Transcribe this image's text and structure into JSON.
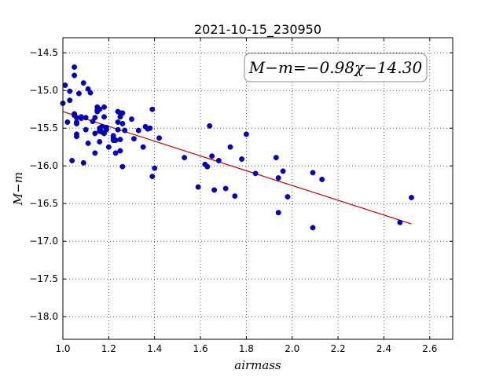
{
  "chart_data": {
    "type": "scatter",
    "title": "2021-10-15_230950",
    "xlabel": "airmass",
    "ylabel": "M−m",
    "xlim": [
      1.0,
      2.7
    ],
    "ylim": [
      -18.3,
      -14.3
    ],
    "xticks": [
      1.0,
      1.2,
      1.4,
      1.6,
      1.8,
      2.0,
      2.2,
      2.4,
      2.6
    ],
    "xtick_labels": [
      "1.0",
      "1.2",
      "1.4",
      "1.6",
      "1.8",
      "2.0",
      "2.2",
      "2.4",
      "2.6"
    ],
    "yticks": [
      -14.5,
      -15.0,
      -15.5,
      -16.0,
      -16.5,
      -17.0,
      -17.5,
      -18.0
    ],
    "ytick_labels": [
      "−14.5",
      "−15.0",
      "−15.5",
      "−16.0",
      "−16.5",
      "−17.0",
      "−17.5",
      "−18.0"
    ],
    "grid": true,
    "annotation": "M−m=−0.98χ−14.30",
    "point_color": "#0000cc",
    "fit_color": "#cc0000",
    "fit_line": {
      "slope": -0.98,
      "intercept": -14.3,
      "x_range": [
        1.0,
        2.52
      ]
    },
    "points": [
      [
        1.0,
        -15.17
      ],
      [
        1.01,
        -14.93
      ],
      [
        1.02,
        -15.42
      ],
      [
        1.03,
        -15.01
      ],
      [
        1.03,
        -15.13
      ],
      [
        1.04,
        -15.93
      ],
      [
        1.05,
        -14.8
      ],
      [
        1.05,
        -14.69
      ],
      [
        1.05,
        -15.31
      ],
      [
        1.05,
        -15.33
      ],
      [
        1.06,
        -15.58
      ],
      [
        1.06,
        -15.61
      ],
      [
        1.06,
        -15.44
      ],
      [
        1.06,
        -15.42
      ],
      [
        1.06,
        -15.36
      ],
      [
        1.07,
        -15.04
      ],
      [
        1.08,
        -15.35
      ],
      [
        1.08,
        -15.37
      ],
      [
        1.09,
        -14.9
      ],
      [
        1.09,
        -15.96
      ],
      [
        1.1,
        -15.52
      ],
      [
        1.1,
        -15.36
      ],
      [
        1.11,
        -15.7
      ],
      [
        1.11,
        -14.98
      ],
      [
        1.12,
        -15.03
      ],
      [
        1.13,
        -15.41
      ],
      [
        1.14,
        -15.83
      ],
      [
        1.14,
        -15.36
      ],
      [
        1.14,
        -15.57
      ],
      [
        1.15,
        -15.22
      ],
      [
        1.15,
        -15.26
      ],
      [
        1.15,
        -15.28
      ],
      [
        1.16,
        -15.25
      ],
      [
        1.16,
        -15.5
      ],
      [
        1.16,
        -15.54
      ],
      [
        1.16,
        -15.68
      ],
      [
        1.17,
        -15.55
      ],
      [
        1.17,
        -15.48
      ],
      [
        1.18,
        -15.22
      ],
      [
        1.18,
        -15.35
      ],
      [
        1.18,
        -15.57
      ],
      [
        1.19,
        -15.52
      ],
      [
        1.19,
        -15.49
      ],
      [
        1.2,
        -15.75
      ],
      [
        1.22,
        -15.63
      ],
      [
        1.22,
        -15.6
      ],
      [
        1.22,
        -15.66
      ],
      [
        1.23,
        -15.83
      ],
      [
        1.23,
        -15.66
      ],
      [
        1.24,
        -15.42
      ],
      [
        1.24,
        -15.28
      ],
      [
        1.24,
        -15.52
      ],
      [
        1.25,
        -15.3
      ],
      [
        1.25,
        -15.35
      ],
      [
        1.25,
        -15.8
      ],
      [
        1.25,
        -15.65
      ],
      [
        1.26,
        -16.01
      ],
      [
        1.26,
        -15.44
      ],
      [
        1.26,
        -15.3
      ],
      [
        1.27,
        -15.53
      ],
      [
        1.3,
        -15.38
      ],
      [
        1.31,
        -15.64
      ],
      [
        1.33,
        -15.53
      ],
      [
        1.35,
        -15.75
      ],
      [
        1.36,
        -15.48
      ],
      [
        1.37,
        -15.51
      ],
      [
        1.38,
        -15.5
      ],
      [
        1.39,
        -15.25
      ],
      [
        1.39,
        -16.14
      ],
      [
        1.4,
        -16.03
      ],
      [
        1.42,
        -15.63
      ],
      [
        1.53,
        -15.89
      ],
      [
        1.59,
        -16.28
      ],
      [
        1.62,
        -15.98
      ],
      [
        1.63,
        -16.01
      ],
      [
        1.64,
        -15.47
      ],
      [
        1.65,
        -15.87
      ],
      [
        1.66,
        -16.32
      ],
      [
        1.68,
        -15.93
      ],
      [
        1.71,
        -16.3
      ],
      [
        1.73,
        -15.75
      ],
      [
        1.75,
        -16.4
      ],
      [
        1.78,
        -15.91
      ],
      [
        1.8,
        -15.58
      ],
      [
        1.84,
        -16.1
      ],
      [
        1.93,
        -15.89
      ],
      [
        1.94,
        -16.16
      ],
      [
        1.94,
        -16.62
      ],
      [
        1.96,
        -16.07
      ],
      [
        1.98,
        -16.41
      ],
      [
        2.09,
        -16.09
      ],
      [
        2.09,
        -16.82
      ],
      [
        2.13,
        -16.18
      ],
      [
        2.47,
        -16.75
      ],
      [
        2.52,
        -16.42
      ]
    ]
  }
}
